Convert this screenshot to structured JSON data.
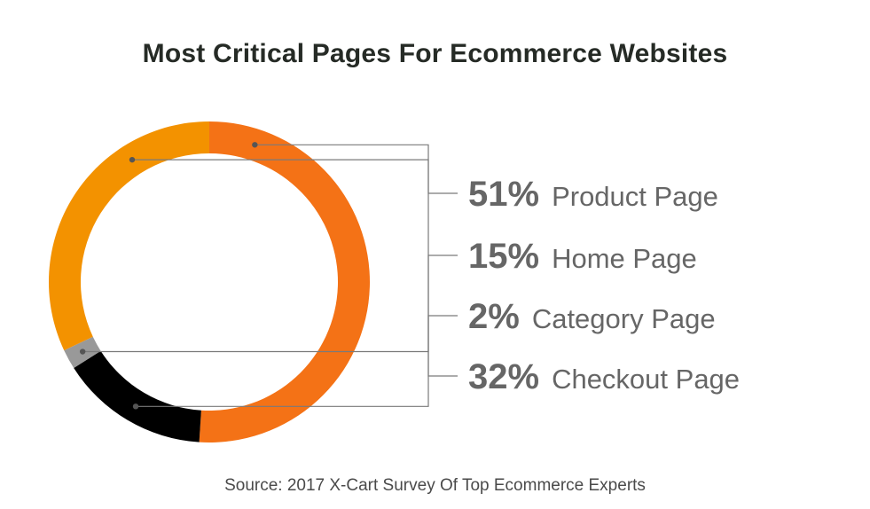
{
  "title": "Most Critical Pages For Ecommerce Websites",
  "source": "Source: 2017 X-Cart Survey Of Top Ecommerce Experts",
  "chart_data": {
    "type": "pie",
    "donut": true,
    "title": "Most Critical Pages For Ecommerce Websites",
    "unit": "%",
    "categories": [
      "Product Page",
      "Home Page",
      "Category Page",
      "Checkout Page"
    ],
    "values": [
      51,
      15,
      2,
      32
    ],
    "labels": [
      "51%",
      "15%",
      "2%",
      "32%"
    ],
    "colors": [
      "#f47216",
      "#000000",
      "#999999",
      "#f39200"
    ],
    "legend": "right"
  }
}
